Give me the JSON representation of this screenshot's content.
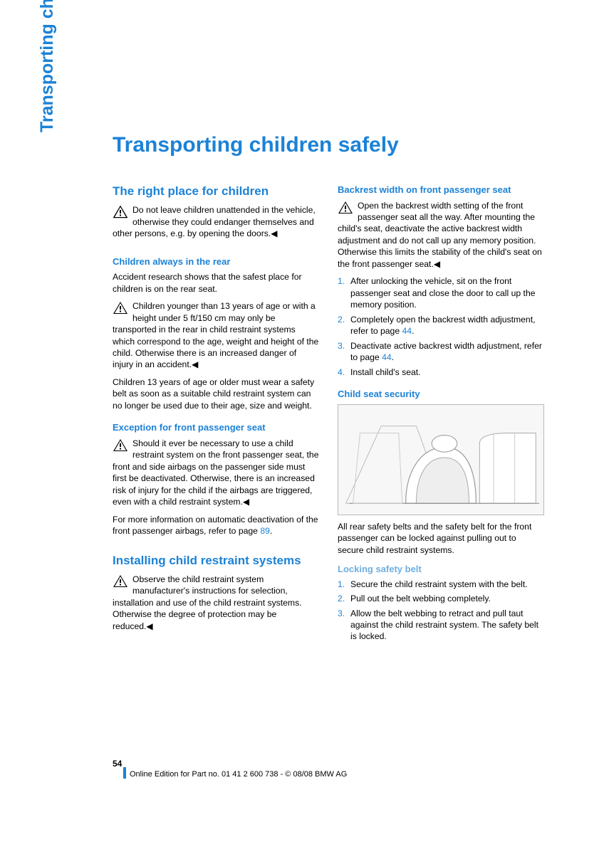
{
  "sideTab": "Transporting children safely",
  "title": "Transporting children safely",
  "colors": {
    "accent": "#1c82d6",
    "accentLight": "#6eaee0",
    "text": "#000000",
    "bg": "#ffffff"
  },
  "left": {
    "h2a": "The right place for children",
    "warn1": "Do not leave children unattended in the vehicle, otherwise they could endanger themselves and other persons, e.g. by opening the doors.◀",
    "h3a": "Children always in the rear",
    "p1": "Accident research shows that the safest place for children is on the rear seat.",
    "warn2": "Children younger than 13 years of age or with a height under 5 ft/150 cm may only be transported in the rear in child restraint systems which correspond to the age, weight and height of the child. Otherwise there is an increased danger of injury in an accident.◀",
    "p2": "Children 13 years of age or older must wear a safety belt as soon as a suitable child restraint system can no longer be used due to their age, size and weight.",
    "h3b": "Exception for front passenger seat",
    "warn3": "Should it ever be necessary to use a child restraint system on the front passenger seat, the front and side airbags on the passenger side must first be deactivated. Otherwise, there is an increased risk of injury for the child if the airbags are triggered, even with a child restraint system.◀",
    "p3a": "For more information on automatic deactivation of the front passenger airbags, refer to page ",
    "p3ref": "89",
    "p3b": ".",
    "h2b": "Installing child restraint systems",
    "warn4": "Observe the child restraint system manufacturer's instructions for selection, installation and use of the child restraint systems. Otherwise the degree of protection may be reduced.◀"
  },
  "right": {
    "h3a": "Backrest width on front passenger seat",
    "warn1": "Open the backrest width setting of the front passenger seat all the way. After mounting the child's seat, deactivate the active backrest width adjustment and do not call up any memory position. Otherwise this limits the stability of the child's seat on the front passenger seat.◀",
    "list1": [
      {
        "n": "1.",
        "t": "After unlocking the vehicle, sit on the front passenger seat and close the door to call up the memory position."
      },
      {
        "n": "2.",
        "t": "Completely open the backrest width adjustment, refer to page ",
        "ref": "44",
        "tail": "."
      },
      {
        "n": "3.",
        "t": "Deactivate active backrest width adjustment, refer to page ",
        "ref": "44",
        "tail": "."
      },
      {
        "n": "4.",
        "t": "Install child's seat."
      }
    ],
    "h3b": "Child seat security",
    "p1": "All rear safety belts and the safety belt for the front passenger can be locked against pulling out to secure child restraint systems.",
    "h4a": "Locking safety belt",
    "list2": [
      {
        "n": "1.",
        "t": "Secure the child restraint system with the belt."
      },
      {
        "n": "2.",
        "t": "Pull out the belt webbing completely."
      },
      {
        "n": "3.",
        "t": "Allow the belt webbing to retract and pull taut against the child restraint system. The safety belt is locked."
      }
    ]
  },
  "pageNum": "54",
  "footer": "Online Edition for Part no. 01 41 2 600 738 - © 08/08 BMW AG"
}
